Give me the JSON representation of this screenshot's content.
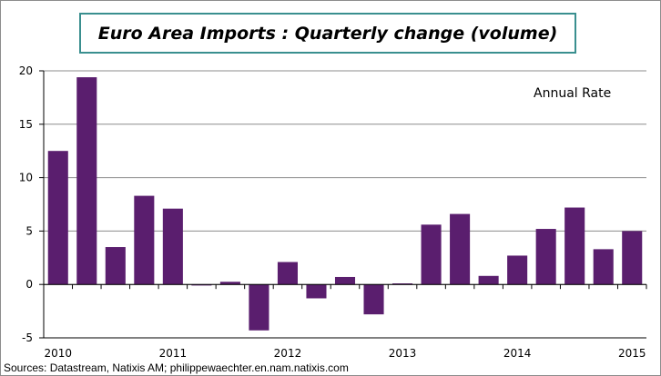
{
  "chart_data": {
    "type": "bar",
    "title": "Euro Area Imports : Quarterly change (volume)",
    "annotation": "Annual Rate",
    "categories": [
      "2010Q1",
      "2010Q2",
      "2010Q3",
      "2010Q4",
      "2011Q1",
      "2011Q2",
      "2011Q3",
      "2011Q4",
      "2012Q1",
      "2012Q2",
      "2012Q3",
      "2012Q4",
      "2013Q1",
      "2013Q2",
      "2013Q3",
      "2013Q4",
      "2014Q1",
      "2014Q2",
      "2014Q3",
      "2014Q4",
      "2015Q1"
    ],
    "values": [
      12.5,
      19.4,
      3.5,
      8.3,
      7.1,
      -0.1,
      0.25,
      -4.3,
      2.1,
      -1.3,
      0.7,
      -2.8,
      0.1,
      5.6,
      6.6,
      0.8,
      2.7,
      5.2,
      7.2,
      3.3,
      5.0
    ],
    "xtick_labels": [
      "2010",
      "2011",
      "2012",
      "2013",
      "2014",
      "2015"
    ],
    "yticks": [
      -5,
      0,
      5,
      10,
      15,
      20
    ],
    "ylim": [
      -5,
      20
    ],
    "grid": true,
    "bar_color": "#5a1e6e",
    "xlabel": "",
    "ylabel": ""
  },
  "source": "Sources: Datastream, Natixis AM; philippewaechter.en.nam.natixis.com"
}
